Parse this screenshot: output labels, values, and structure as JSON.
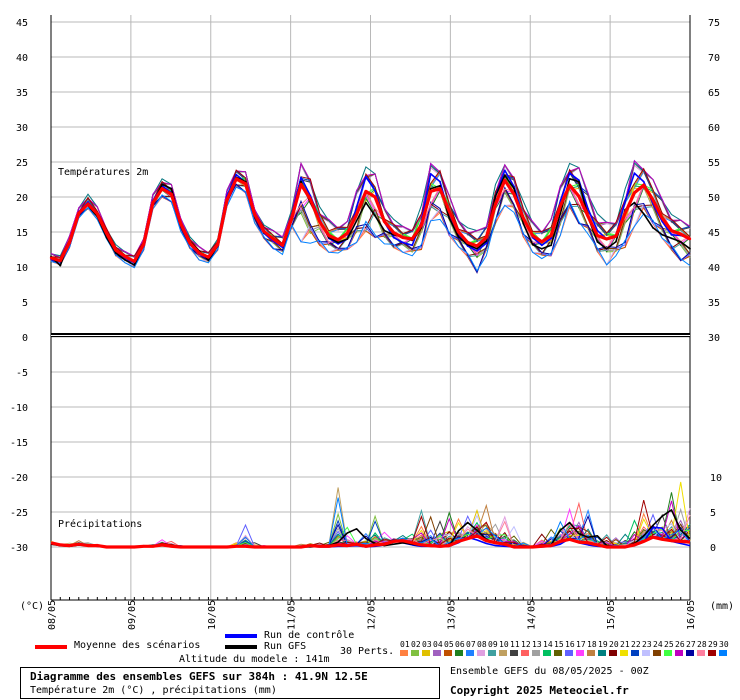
{
  "chart_data": {
    "type": "line",
    "title": "Diagramme des ensembles GEFS sur 384h : 41.9N 12.5E",
    "subtitle": "Température 2m (°C) , précipitations (mm)",
    "panel_labels": [
      "Températures 2m",
      "Précipitations"
    ],
    "left_axis": {
      "unit": "(°C)",
      "ticks": [
        45,
        40,
        35,
        30,
        25,
        20,
        15,
        10,
        5,
        0,
        -5,
        -10,
        -15,
        -20,
        -25,
        -30
      ],
      "range": [
        -39,
        46
      ]
    },
    "right_axis_temp": {
      "ticks": [
        75,
        70,
        65,
        60,
        55,
        50,
        45,
        40,
        35,
        30
      ]
    },
    "right_axis_precip": {
      "unit": "(mm)",
      "ticks": [
        10,
        5,
        0
      ]
    },
    "x_axis": {
      "labels": [
        "08/05",
        "09/05",
        "10/05",
        "11/05",
        "12/05",
        "13/05",
        "14/05",
        "15/05",
        "16/05"
      ],
      "hours_total": 384,
      "step_hours": 6
    },
    "series": [
      {
        "name": "Moyenne des scénarios",
        "color": "#ff0000",
        "temperature": [
          11.3,
          10.9,
          13.5,
          17.7,
          19.0,
          17.6,
          14.8,
          12.4,
          11.5,
          10.8,
          13.2,
          19.2,
          21.2,
          20.4,
          16.2,
          13.4,
          12.0,
          11.4,
          13.2,
          19.6,
          22.6,
          21.9,
          17.5,
          15.1,
          14.0,
          13.1,
          17.0,
          21.8,
          19.7,
          16.5,
          14.5,
          13.9,
          14.8,
          17.5,
          20.8,
          20.0,
          16.5,
          14.9,
          14.2,
          14.0,
          16.0,
          20.8,
          21.2,
          18.0,
          15.0,
          13.5,
          13.0,
          14.2,
          19.0,
          22.4,
          20.4,
          17.0,
          14.5,
          13.6,
          14.5,
          18.7,
          21.7,
          20.1,
          17.2,
          14.5,
          14.0,
          14.4,
          17.7,
          20.6,
          21.7,
          19.6,
          17.0,
          15.2,
          14.7,
          14.0
        ],
        "precip": [
          0.6,
          0.3,
          0.2,
          0.4,
          0.2,
          0.2,
          0.0,
          0.0,
          0.0,
          0.0,
          0.1,
          0.1,
          0.3,
          0.1,
          0.0,
          0.0,
          0.0,
          0.0,
          0.0,
          0.0,
          0.1,
          0.1,
          0.0,
          0.0,
          0.0,
          0.0,
          0.0,
          0.0,
          0.2,
          0.1,
          0.1,
          0.3,
          0.2,
          0.4,
          0.1,
          0.3,
          0.4,
          0.8,
          0.9,
          0.6,
          0.3,
          0.2,
          0.1,
          0.2,
          0.8,
          1.2,
          1.6,
          0.9,
          0.6,
          0.4,
          0.0,
          0.0,
          0.0,
          0.1,
          0.2,
          0.8,
          1.1,
          0.7,
          0.6,
          0.3,
          0.0,
          0.0,
          0.0,
          0.3,
          0.8,
          1.4,
          1.1,
          0.9,
          0.8,
          0.7
        ]
      },
      {
        "name": "Run de contrôle",
        "color": "#0000ff",
        "temperature": [
          11.1,
          10.7,
          13.3,
          17.9,
          19.3,
          17.7,
          14.6,
          12.1,
          11.3,
          10.6,
          13.0,
          19.5,
          21.6,
          20.6,
          16.0,
          13.2,
          11.8,
          11.2,
          13.0,
          20.2,
          23.2,
          22.1,
          17.2,
          14.8,
          13.7,
          12.8,
          17.5,
          22.8,
          20.2,
          16.9,
          14.1,
          13.3,
          14.0,
          18.6,
          22.9,
          20.9,
          16.4,
          14.2,
          13.5,
          13.1,
          16.5,
          23.3,
          22.2,
          17.6,
          14.6,
          13.0,
          12.3,
          13.4,
          20.1,
          23.8,
          21.5,
          17.2,
          14.2,
          13.1,
          14.1,
          19.4,
          23.4,
          22.4,
          18.3,
          15.2,
          14.0,
          14.5,
          19.4,
          23.4,
          22.2,
          19.0,
          16.5,
          14.6,
          14.5,
          14.1
        ],
        "precip": [
          0.5,
          0.2,
          0.2,
          0.3,
          0.2,
          0.1,
          0.0,
          0.0,
          0.0,
          0.0,
          0.1,
          0.1,
          0.2,
          0.1,
          0.0,
          0.0,
          0.0,
          0.0,
          0.0,
          0.0,
          0.1,
          0.1,
          0.0,
          0.0,
          0.0,
          0.0,
          0.0,
          0.0,
          0.1,
          0.0,
          0.0,
          0.1,
          0.1,
          0.2,
          0.0,
          0.1,
          0.3,
          1.0,
          0.6,
          0.3,
          0.1,
          0.1,
          0.0,
          0.1,
          0.6,
          1.4,
          1.0,
          0.5,
          0.2,
          0.1,
          0.0,
          0.0,
          0.0,
          0.0,
          0.1,
          0.4,
          1.2,
          0.6,
          0.3,
          0.1,
          0.0,
          0.0,
          0.0,
          0.2,
          0.7,
          2.8,
          2.7,
          0.8,
          0.5,
          0.2
        ]
      },
      {
        "name": "Run GFS",
        "color": "#000000",
        "temperature": [
          11.5,
          10.2,
          13.8,
          17.8,
          18.8,
          17.2,
          14.2,
          12.0,
          11.0,
          10.3,
          13.1,
          19.0,
          21.8,
          21.2,
          16.2,
          13.6,
          12.3,
          11.0,
          13.0,
          19.7,
          22.8,
          22.2,
          17.2,
          14.9,
          14.1,
          13.3,
          16.6,
          22.2,
          19.2,
          16.6,
          14.2,
          13.5,
          14.0,
          16.6,
          19.2,
          17.3,
          15.2,
          14.6,
          14.3,
          13.8,
          15.6,
          21.2,
          21.6,
          17.0,
          14.3,
          13.2,
          12.6,
          13.7,
          20.1,
          23.1,
          21.2,
          16.2,
          13.2,
          12.6,
          13.1,
          17.6,
          22.6,
          22.2,
          17.1,
          13.6,
          12.6,
          13.6,
          18.2,
          19.2,
          17.6,
          15.6,
          14.6,
          14.1,
          13.6,
          12.6
        ],
        "precip": [
          0.4,
          0.2,
          0.1,
          0.3,
          0.2,
          0.1,
          0.0,
          0.0,
          0.0,
          0.0,
          0.1,
          0.1,
          0.2,
          0.1,
          0.0,
          0.0,
          0.0,
          0.0,
          0.0,
          0.0,
          0.1,
          0.1,
          0.0,
          0.0,
          0.0,
          0.0,
          0.0,
          0.0,
          0.0,
          0.1,
          0.2,
          0.7,
          2.0,
          2.6,
          1.2,
          0.5,
          0.2,
          0.4,
          0.6,
          0.4,
          0.2,
          0.1,
          0.1,
          0.1,
          2.3,
          3.5,
          2.4,
          1.1,
          0.6,
          0.5,
          0.1,
          0.0,
          0.0,
          0.1,
          0.3,
          2.4,
          3.5,
          1.9,
          1.4,
          1.6,
          0.2,
          0.0,
          0.0,
          0.5,
          1.6,
          3.1,
          4.4,
          5.3,
          2.4,
          1.2
        ]
      }
    ],
    "ensemble_members": 30,
    "ensemble_spread": {
      "temperature_min": [
        10.8,
        10.2,
        12.8,
        17.0,
        18.3,
        16.8,
        14.0,
        11.6,
        10.6,
        9.9,
        12.4,
        18.3,
        19.8,
        19.3,
        15.1,
        12.6,
        11.0,
        10.6,
        12.4,
        18.7,
        21.4,
        20.6,
        16.3,
        13.9,
        12.6,
        11.8,
        15.6,
        13.6,
        13.4,
        13.1,
        12.1,
        12.0,
        12.5,
        13.5,
        14.2,
        14.2,
        13.3,
        12.6,
        12.1,
        11.6,
        12.5,
        16.6,
        16.8,
        14.5,
        12.9,
        11.1,
        9.2,
        11.6,
        16.0,
        18.8,
        17.8,
        14.3,
        12.1,
        11.2,
        11.6,
        14.5,
        18.1,
        16.2,
        14.7,
        12.0,
        10.3,
        11.6,
        12.8,
        15.8,
        17.6,
        16.2,
        14.1,
        12.0,
        10.9,
        10.2
      ],
      "temperature_max": [
        12.0,
        11.6,
        14.4,
        18.6,
        20.4,
        18.6,
        15.6,
        13.2,
        12.2,
        11.8,
        14.0,
        20.5,
        22.6,
        21.8,
        17.1,
        14.3,
        12.9,
        12.2,
        14.0,
        21.0,
        24.2,
        23.6,
        18.3,
        16.0,
        15.2,
        14.5,
        18.2,
        24.8,
        23.1,
        18.6,
        16.8,
        16.2,
        16.5,
        21.2,
        24.3,
        23.3,
        18.8,
        16.8,
        15.8,
        15.5,
        18.8,
        24.8,
        24.5,
        20.2,
        16.8,
        15.6,
        15.2,
        16.0,
        21.8,
        24.6,
        23.3,
        19.4,
        16.5,
        15.5,
        16.8,
        21.8,
        24.8,
        24.2,
        21.1,
        17.6,
        16.4,
        16.7,
        21.2,
        25.2,
        24.7,
        22.5,
        19.9,
        17.5,
        16.7,
        16.1
      ],
      "precip_max": [
        0.8,
        0.5,
        0.6,
        1.0,
        0.6,
        0.4,
        0.1,
        0.1,
        0.0,
        0.0,
        0.3,
        0.4,
        1.2,
        0.8,
        0.2,
        0.1,
        0.0,
        0.0,
        0.0,
        0.1,
        0.7,
        3.8,
        0.6,
        0.2,
        0.1,
        0.0,
        0.1,
        0.4,
        0.6,
        0.8,
        0.8,
        8.5,
        2.8,
        0.9,
        2.3,
        4.4,
        2.1,
        1.4,
        2.0,
        2.1,
        5.2,
        4.3,
        5.4,
        5.9,
        4.0,
        4.4,
        7.0,
        8.4,
        3.8,
        4.3,
        2.9,
        1.0,
        0.2,
        2.2,
        2.5,
        3.6,
        7.5,
        7.4,
        5.2,
        1.4,
        2.6,
        1.6,
        2.2,
        3.8,
        6.7,
        6.2,
        5.3,
        7.8,
        9.3,
        7.9
      ]
    },
    "grid": true
  },
  "legend": {
    "mean_label": "Moyenne des scénarios",
    "control_label": "Run de contrôle",
    "gfs_label": "Run GFS",
    "altitude": "Altitude du modele : 141m",
    "perts_label": "30 Perts.",
    "perts": [
      {
        "n": "01",
        "color": "#ff8040"
      },
      {
        "n": "02",
        "color": "#80c040"
      },
      {
        "n": "03",
        "color": "#e0c000"
      },
      {
        "n": "04",
        "color": "#a060c0"
      },
      {
        "n": "05",
        "color": "#c05000"
      },
      {
        "n": "06",
        "color": "#208020"
      },
      {
        "n": "07",
        "color": "#2080ff"
      },
      {
        "n": "08",
        "color": "#e0a0e0"
      },
      {
        "n": "09",
        "color": "#40a0a0"
      },
      {
        "n": "10",
        "color": "#c0a060"
      },
      {
        "n": "11",
        "color": "#404040"
      },
      {
        "n": "12",
        "color": "#ff6060"
      },
      {
        "n": "13",
        "color": "#a0a0a0"
      },
      {
        "n": "14",
        "color": "#00c060"
      },
      {
        "n": "15",
        "color": "#606000"
      },
      {
        "n": "16",
        "color": "#6060ff"
      },
      {
        "n": "17",
        "color": "#ff40ff"
      },
      {
        "n": "18",
        "color": "#c08040"
      },
      {
        "n": "19",
        "color": "#008080"
      },
      {
        "n": "20",
        "color": "#800000"
      },
      {
        "n": "21",
        "color": "#f0e000"
      },
      {
        "n": "22",
        "color": "#0040c0"
      },
      {
        "n": "23",
        "color": "#c0c0ff"
      },
      {
        "n": "24",
        "color": "#804000"
      },
      {
        "n": "25",
        "color": "#40ff40"
      },
      {
        "n": "26",
        "color": "#c000c0"
      },
      {
        "n": "27",
        "color": "#0000a0"
      },
      {
        "n": "28",
        "color": "#ff80a0"
      },
      {
        "n": "29",
        "color": "#a00000"
      },
      {
        "n": "30",
        "color": "#0080ff"
      }
    ]
  },
  "footer": {
    "title": "Diagramme des ensembles GEFS sur 384h : 41.9N 12.5E",
    "subtitle": "Température 2m (°C) , précipitations (mm)",
    "ensemble_run": "Ensemble GEFS du 08/05/2025 - 00Z",
    "copyright": "Copyright 2025 Meteociel.fr"
  }
}
